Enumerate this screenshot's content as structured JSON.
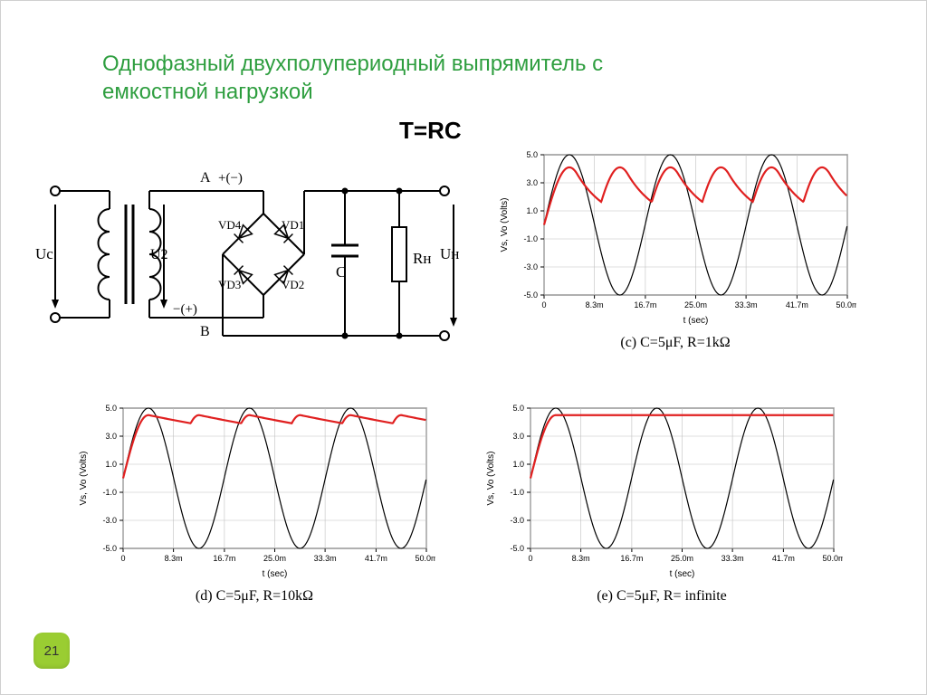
{
  "title_line1": "Однофазный двухполупериодный выпрямитель с",
  "title_line2": "емкостной нагрузкой",
  "formula": "T=RC",
  "page_number": "21",
  "circuit": {
    "labels": {
      "Uc": "Uc",
      "U2": "U2",
      "A": "A",
      "B": "B",
      "plus_minus": "+(−)",
      "minus_plus": "−(+)",
      "VD1": "VD1",
      "VD2": "VD2",
      "VD3": "VD3",
      "VD4": "VD4",
      "C": "C",
      "Rn": "Rн",
      "Un": "Uн"
    },
    "stroke": "#000000",
    "stroke_width": 2
  },
  "charts": {
    "common": {
      "x_ticks": [
        "0",
        "8.3m",
        "16.7m",
        "25.0m",
        "33.3m",
        "41.7m",
        "50.0m"
      ],
      "y_ticks": [
        "-5.0",
        "-3.0",
        "-1.0",
        "1.0",
        "3.0",
        "5.0"
      ],
      "y_values": [
        -5,
        -3,
        -1,
        1,
        3,
        5
      ],
      "x_values": [
        0,
        8.3,
        16.7,
        25.0,
        33.3,
        41.7,
        50.0
      ],
      "xlabel": "t  (sec)",
      "ylabel": "Vs, Vo   (Volts)",
      "axis_color": "#000000",
      "grid_color": "#c0c0c0",
      "sine_color": "#000000",
      "filter_color": "#e02020",
      "sine_stroke_width": 1.2,
      "filter_stroke_width": 2.2,
      "xlim": [
        0,
        50
      ],
      "ylim": [
        -5,
        5
      ],
      "background": "#ffffff",
      "tick_fontsize": 9,
      "label_fontsize": 10
    },
    "c": {
      "tau": 5.0,
      "peak": 4.1,
      "caption": "(c) C=5μF, R=1kΩ"
    },
    "d": {
      "tau": 50.0,
      "peak": 4.5,
      "caption": "(d) C=5μF, R=10kΩ"
    },
    "e": {
      "tau": 1000000000.0,
      "peak": 4.5,
      "caption": "(e) C=5μF, R= infinite"
    }
  }
}
